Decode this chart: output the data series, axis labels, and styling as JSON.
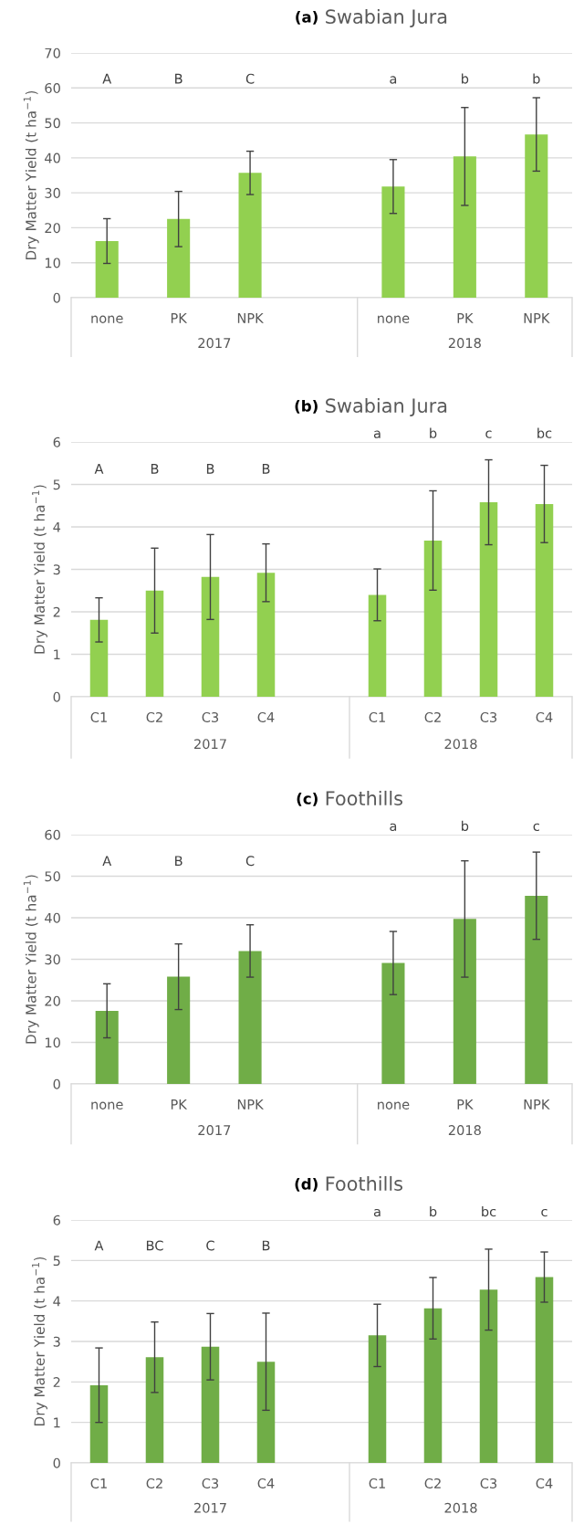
{
  "chart_data": [
    {
      "type": "bar",
      "title": "(a) Swabian Jura",
      "ylabel": "Dry Matter Yield (t ha$^{−1}$)",
      "categories": [
        "none",
        "PK",
        "NPK",
        null,
        "none",
        "PK",
        "NPK"
      ],
      "series": [
        {
          "color": "#92d050",
          "values": [
            16.2,
            22.5,
            35.7,
            null,
            31.8,
            40.4,
            46.7
          ],
          "errors": [
            6.4,
            7.9,
            6.2,
            null,
            7.7,
            14.0,
            10.5
          ]
        }
      ],
      "ylim": [
        0,
        70
      ],
      "yticks": [
        0,
        10,
        20,
        30,
        40,
        50,
        60,
        70
      ],
      "grid": "y",
      "annotations": [
        "A",
        "B",
        "C",
        "a",
        "b",
        "b",
        "2017",
        "2018"
      ]
    },
    {
      "type": "bar",
      "title": "(b) Swabian Jura",
      "ylabel": "Dry Matter Yield (t ha$^{−1}$)",
      "categories": [
        "C1",
        "C2",
        "C3",
        "C4",
        null,
        "C1",
        "C2",
        "C3",
        "C4"
      ],
      "series": [
        {
          "color": "#92d050",
          "values": [
            1.81,
            2.5,
            2.82,
            2.92,
            null,
            2.4,
            3.68,
            4.58,
            4.54
          ],
          "errors": [
            0.52,
            1.0,
            1.0,
            0.68,
            null,
            0.61,
            1.17,
            1.0,
            0.91
          ]
        }
      ],
      "ylim": [
        0,
        6
      ],
      "yticks": [
        0,
        1,
        2,
        3,
        4,
        5,
        6
      ],
      "grid": "y",
      "annotations": [
        "A",
        "B",
        "B",
        "B",
        "a",
        "b",
        "c",
        "bc",
        "2017",
        "2018"
      ]
    },
    {
      "type": "bar",
      "title": "(c) Foothills",
      "ylabel": "Dry Matter Yield (t ha$^{−1}$)",
      "categories": [
        "none",
        "PK",
        "NPK",
        null,
        "none",
        "PK",
        "NPK"
      ],
      "series": [
        {
          "color": "#70ad47",
          "values": [
            17.6,
            25.8,
            32.0,
            null,
            29.1,
            39.7,
            45.3
          ],
          "errors": [
            6.5,
            7.9,
            6.3,
            null,
            7.6,
            14.0,
            10.5
          ]
        }
      ],
      "ylim": [
        0,
        60
      ],
      "yticks": [
        0,
        10,
        20,
        30,
        40,
        50,
        60
      ],
      "grid": "y",
      "annotations": [
        "A",
        "B",
        "C",
        "a",
        "b",
        "c",
        "2017",
        "2018"
      ]
    },
    {
      "type": "bar",
      "title": "(d) Foothills",
      "ylabel": "Dry Matter Yield (t ha$^{−1}$)",
      "categories": [
        "C1",
        "C2",
        "C3",
        "C4",
        null,
        "C1",
        "C2",
        "C3",
        "C4"
      ],
      "series": [
        {
          "color": "#70ad47",
          "values": [
            1.92,
            2.61,
            2.87,
            2.5,
            null,
            3.15,
            3.82,
            4.28,
            4.59
          ],
          "errors": [
            0.92,
            0.87,
            0.82,
            1.2,
            null,
            0.77,
            0.76,
            1.0,
            0.62
          ]
        }
      ],
      "ylim": [
        0,
        6
      ],
      "yticks": [
        0,
        1,
        2,
        3,
        4,
        5,
        6
      ],
      "grid": "y",
      "annotations": [
        "A",
        "BC",
        "C",
        "B",
        "a",
        "b",
        "bc",
        "c",
        "2017",
        "2018"
      ]
    }
  ]
}
